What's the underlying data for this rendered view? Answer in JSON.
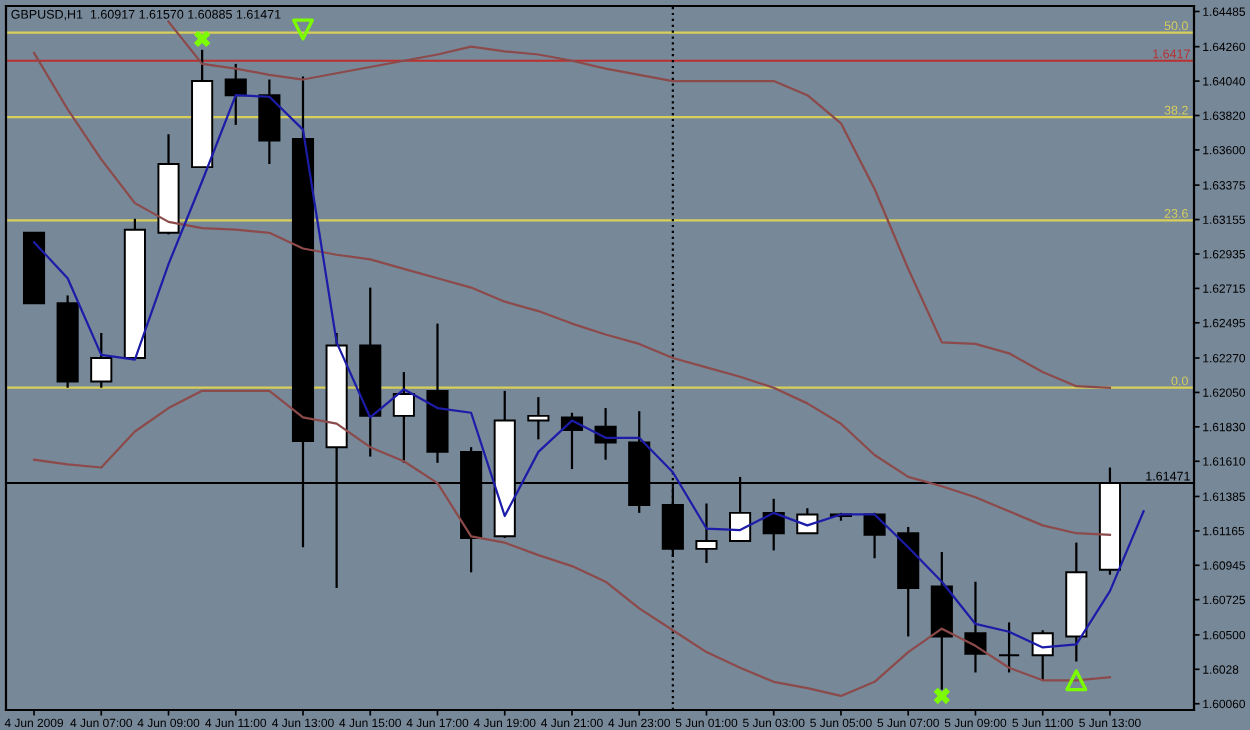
{
  "chart_data": {
    "type": "candlestick",
    "title": "GBPUSD,H1  1.60917 1.61570 1.60885 1.61471",
    "x": [
      "2009-06-04T05:00",
      "2009-06-04T06:00",
      "2009-06-04T07:00",
      "2009-06-04T08:00",
      "2009-06-04T09:00",
      "2009-06-04T10:00",
      "2009-06-04T11:00",
      "2009-06-04T12:00",
      "2009-06-04T13:00",
      "2009-06-04T14:00",
      "2009-06-04T15:00",
      "2009-06-04T16:00",
      "2009-06-04T17:00",
      "2009-06-04T18:00",
      "2009-06-04T19:00",
      "2009-06-04T20:00",
      "2009-06-04T21:00",
      "2009-06-04T22:00",
      "2009-06-04T23:00",
      "2009-06-05T00:00",
      "2009-06-05T01:00",
      "2009-06-05T02:00",
      "2009-06-05T03:00",
      "2009-06-05T04:00",
      "2009-06-05T05:00",
      "2009-06-05T06:00",
      "2009-06-05T07:00",
      "2009-06-05T08:00",
      "2009-06-05T09:00",
      "2009-06-05T10:00",
      "2009-06-05T11:00",
      "2009-06-05T12:00",
      "2009-06-05T13:00"
    ],
    "ohlc": [
      [
        1.6307,
        1.6307,
        1.6262,
        1.6262
      ],
      [
        1.6262,
        1.6267,
        1.6208,
        1.6212
      ],
      [
        1.6212,
        1.6243,
        1.6208,
        1.6227
      ],
      [
        1.6227,
        1.6316,
        1.6227,
        1.6309
      ],
      [
        1.6307,
        1.637,
        1.6306,
        1.6351
      ],
      [
        1.6349,
        1.6424,
        1.6349,
        1.6404
      ],
      [
        1.6405,
        1.6415,
        1.6376,
        1.6395
      ],
      [
        1.6395,
        1.6405,
        1.6351,
        1.6366
      ],
      [
        1.6367,
        1.6407,
        1.6106,
        1.6174
      ],
      [
        1.617,
        1.6243,
        1.608,
        1.6235
      ],
      [
        1.6235,
        1.6272,
        1.6164,
        1.619
      ],
      [
        1.619,
        1.6218,
        1.616,
        1.6204
      ],
      [
        1.6206,
        1.6249,
        1.616,
        1.6167
      ],
      [
        1.6167,
        1.617,
        1.609,
        1.6112
      ],
      [
        1.6113,
        1.6206,
        1.6112,
        1.6187
      ],
      [
        1.6187,
        1.6202,
        1.6175,
        1.619
      ],
      [
        1.6189,
        1.6192,
        1.6156,
        1.6181
      ],
      [
        1.6183,
        1.6195,
        1.6162,
        1.6173
      ],
      [
        1.6173,
        1.6193,
        1.6128,
        1.6133
      ],
      [
        1.6133,
        1.6145,
        1.61,
        1.6105
      ],
      [
        1.6105,
        1.6134,
        1.6096,
        1.611
      ],
      [
        1.611,
        1.6151,
        1.611,
        1.6128
      ],
      [
        1.6128,
        1.6137,
        1.6104,
        1.6115
      ],
      [
        1.6115,
        1.6131,
        1.6115,
        1.6127
      ],
      [
        1.6127,
        1.6128,
        1.6123,
        1.6126
      ],
      [
        1.6127,
        1.6128,
        1.6099,
        1.6114
      ],
      [
        1.6115,
        1.6119,
        1.6049,
        1.608
      ],
      [
        1.6081,
        1.6103,
        1.6015,
        1.6049
      ],
      [
        1.6051,
        1.6084,
        1.6026,
        1.6038
      ],
      [
        1.6037,
        1.6058,
        1.6026,
        1.6037
      ],
      [
        1.6037,
        1.6053,
        1.6021,
        1.6051
      ],
      [
        1.6049,
        1.6109,
        1.6033,
        1.609
      ],
      [
        1.60917,
        1.6157,
        1.60885,
        1.61471
      ]
    ],
    "series": [
      {
        "type": "line",
        "color": "#8c4a4a",
        "values": [
          null,
          null,
          null,
          null,
          1.6442,
          1.6415,
          1.6412,
          1.6408,
          1.6405,
          1.6409,
          1.6413,
          1.6417,
          1.6421,
          1.6426,
          1.6423,
          1.6421,
          1.6417,
          1.6412,
          1.6408,
          1.6404,
          1.6404,
          1.6404,
          1.6404,
          1.6395,
          1.6377,
          1.6335,
          1.6284,
          1.6237,
          1.6236,
          1.623,
          1.6218,
          1.6209,
          1.6208
        ]
      },
      {
        "type": "line",
        "color": "#8c4a4a",
        "values": [
          1.6422,
          1.6386,
          1.6354,
          1.6326,
          1.6314,
          1.631,
          1.6309,
          1.6307,
          1.6297,
          1.6293,
          1.629,
          1.6284,
          1.6278,
          1.6272,
          1.6263,
          1.6257,
          1.6249,
          1.6242,
          1.6236,
          1.6227,
          1.6221,
          1.6215,
          1.6208,
          1.6198,
          1.6185,
          1.6165,
          1.6151,
          1.6145,
          1.6138,
          1.6129,
          1.612,
          1.6115,
          1.6114
        ]
      },
      {
        "type": "line",
        "color": "#8c4a4a",
        "values": [
          1.6162,
          1.6159,
          1.6157,
          1.618,
          1.6195,
          1.6206,
          1.6206,
          1.6206,
          1.6189,
          1.6185,
          1.617,
          1.6161,
          1.6147,
          1.6113,
          1.6109,
          1.6101,
          1.6094,
          1.6084,
          1.6067,
          1.6053,
          1.6039,
          1.6029,
          1.602,
          1.6016,
          1.6011,
          1.602,
          1.6039,
          1.6054,
          1.6043,
          1.6029,
          1.6021,
          1.6021,
          1.6023
        ]
      },
      {
        "type": "line",
        "color": "#1c1ca8",
        "x": [
          "2009-06-04T05:00",
          "2009-06-04T06:00",
          "2009-06-04T07:00",
          "2009-06-04T08:00",
          "2009-06-04T09:00",
          "2009-06-04T10:00",
          "2009-06-04T11:00",
          "2009-06-04T12:00",
          "2009-06-04T13:00",
          "2009-06-04T14:00",
          "2009-06-04T15:00",
          "2009-06-04T16:00",
          "2009-06-04T17:00",
          "2009-06-04T18:00",
          "2009-06-04T19:00",
          "2009-06-04T20:00",
          "2009-06-04T21:00",
          "2009-06-04T22:00",
          "2009-06-04T23:00",
          "2009-06-05T00:00",
          "2009-06-05T01:00",
          "2009-06-05T02:00",
          "2009-06-05T03:00",
          "2009-06-05T04:00",
          "2009-06-05T05:00",
          "2009-06-05T06:00",
          "2009-06-05T07:00",
          "2009-06-05T08:00",
          "2009-06-05T09:00",
          "2009-06-05T10:00",
          "2009-06-05T11:00",
          "2009-06-05T12:00",
          "2009-06-05T13:00",
          "2009-06-05T14:00"
        ],
        "values": [
          1.6301,
          1.6278,
          1.6229,
          1.6226,
          1.6287,
          1.634,
          1.6395,
          1.6394,
          1.6373,
          1.6237,
          1.6189,
          1.6207,
          1.6195,
          1.6192,
          1.6126,
          1.6167,
          1.6187,
          1.6176,
          1.6176,
          1.6154,
          1.6118,
          1.6117,
          1.6128,
          1.612,
          1.6127,
          1.6127,
          1.6106,
          1.6084,
          1.6057,
          1.6052,
          1.6042,
          1.6044,
          1.6078,
          1.6129
        ]
      },
      {
        "type": "scatter",
        "color": "#7cfc00",
        "marker": "cross",
        "x": [
          "2009-06-04T10:00",
          "2009-06-05T08:00"
        ],
        "values": [
          1.6431,
          1.6011
        ]
      },
      {
        "type": "scatter",
        "color": "#7cfc00",
        "marker": "triangle",
        "x": [
          "2009-06-04T13:00"
        ],
        "values": [
          1.6437
        ]
      },
      {
        "type": "scatter",
        "color": "#7cfc00",
        "marker": "triangle",
        "x": [
          "2009-06-05T12:00"
        ],
        "values": [
          1.6021
        ]
      }
    ],
    "ref_lines": [
      {
        "axis": "y",
        "value": 1.6435,
        "color": "#d8cf5a"
      },
      {
        "axis": "y",
        "value": 1.6381,
        "color": "#d8cf5a"
      },
      {
        "axis": "y",
        "value": 1.6315,
        "color": "#d8cf5a"
      },
      {
        "axis": "y",
        "value": 1.6208,
        "color": "#d8cf5a"
      },
      {
        "axis": "y",
        "value": 1.6417,
        "label": "1.6417",
        "color": "#b83030"
      },
      {
        "axis": "y",
        "value": 1.61471,
        "label": "1.61471",
        "color": "#000000"
      },
      {
        "axis": "x",
        "value": "2009-06-05T00:00",
        "color": "#000000",
        "line_style": "dotted"
      }
    ],
    "annotations": [
      {
        "text": "50.0",
        "x": "2009-06-05T15:20",
        "y": 1.6435
      },
      {
        "text": "38.2",
        "x": "2009-06-05T15:20",
        "y": 1.6381
      },
      {
        "text": "23.6",
        "x": "2009-06-05T15:20",
        "y": 1.6315
      },
      {
        "text": "0.0",
        "x": "2009-06-05T15:20",
        "y": 1.6208
      }
    ],
    "xlim": [
      "2009-06-04T04:10",
      "2009-06-05T15:30"
    ],
    "xticks": [
      {
        "value": "2009-06-04T05:00",
        "label": "4 Jun 2009"
      },
      {
        "value": "2009-06-04T07:00",
        "label": "4 Jun 07:00"
      },
      {
        "value": "2009-06-04T09:00",
        "label": "4 Jun 09:00"
      },
      {
        "value": "2009-06-04T11:00",
        "label": "4 Jun 11:00"
      },
      {
        "value": "2009-06-04T13:00",
        "label": "4 Jun 13:00"
      },
      {
        "value": "2009-06-04T15:00",
        "label": "4 Jun 15:00"
      },
      {
        "value": "2009-06-04T17:00",
        "label": "4 Jun 17:00"
      },
      {
        "value": "2009-06-04T19:00",
        "label": "4 Jun 19:00"
      },
      {
        "value": "2009-06-04T21:00",
        "label": "4 Jun 21:00"
      },
      {
        "value": "2009-06-04T23:00",
        "label": "4 Jun 23:00"
      },
      {
        "value": "2009-06-05T01:00",
        "label": "5 Jun 01:00"
      },
      {
        "value": "2009-06-05T03:00",
        "label": "5 Jun 03:00"
      },
      {
        "value": "2009-06-05T05:00",
        "label": "5 Jun 05:00"
      },
      {
        "value": "2009-06-05T07:00",
        "label": "5 Jun 07:00"
      },
      {
        "value": "2009-06-05T09:00",
        "label": "5 Jun 09:00"
      },
      {
        "value": "2009-06-05T11:00",
        "label": "5 Jun 11:00"
      },
      {
        "value": "2009-06-05T13:00",
        "label": "5 Jun 13:00"
      }
    ],
    "ylim": [
      1.6002,
      1.6452
    ],
    "yticks": [
      1.64485,
      {
        "value": 1.6426,
        "label": "1.64260"
      },
      {
        "value": 1.6404,
        "label": "1.64040"
      },
      {
        "value": 1.6382,
        "label": "1.63820"
      },
      {
        "value": 1.636,
        "label": "1.63600"
      },
      1.63375,
      1.63155,
      1.62935,
      1.62715,
      1.62495,
      {
        "value": 1.6227,
        "label": "1.62270"
      },
      {
        "value": 1.6205,
        "label": "1.62050"
      },
      {
        "value": 1.6183,
        "label": "1.61830"
      },
      {
        "value": 1.6161,
        "label": "1.61610"
      },
      1.61385,
      1.61165,
      1.60945,
      1.60725,
      {
        "value": 1.605,
        "label": "1.60500"
      },
      1.6028,
      {
        "value": 1.6006,
        "label": "1.60060"
      }
    ]
  }
}
